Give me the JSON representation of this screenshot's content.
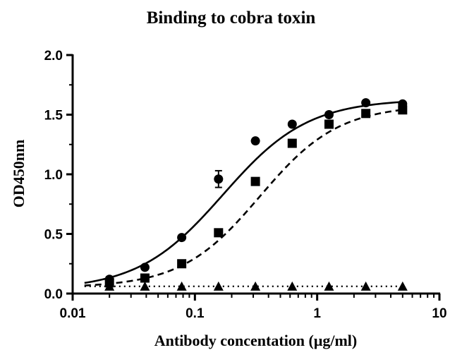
{
  "chart_data": {
    "type": "scatter",
    "title": "Binding to cobra toxin",
    "xlabel": "Antibody concentation (μg/ml)",
    "ylabel": "OD450nm",
    "x_scale": "log",
    "xlim": [
      0.01,
      10
    ],
    "ylim": [
      0,
      2.0
    ],
    "x_ticks": [
      0.01,
      0.1,
      1,
      10
    ],
    "x_tick_labels": [
      "0.01",
      "0.1",
      "1",
      "10"
    ],
    "y_ticks": [
      0,
      0.5,
      1.0,
      1.5,
      2.0
    ],
    "y_tick_labels": [
      "0.0",
      "0.5",
      "1.0",
      "1.5",
      "2.0"
    ],
    "grid": false,
    "legend": "none",
    "series": [
      {
        "marker": "circle",
        "line_style": "solid",
        "x": [
          0.02,
          0.039,
          0.078,
          0.156,
          0.3125,
          0.625,
          1.25,
          2.5,
          5
        ],
        "y": [
          0.12,
          0.22,
          0.47,
          0.96,
          1.28,
          1.42,
          1.5,
          1.6,
          1.59
        ],
        "error": [
          0.02,
          0.01,
          0.02,
          0.07,
          0.02,
          0.02,
          0.02,
          0.01,
          0.02
        ],
        "fit": {
          "bottom": 0.03,
          "top": 1.63,
          "ec50": 0.17,
          "hill": 1.25
        }
      },
      {
        "marker": "square",
        "line_style": "dashed",
        "x": [
          0.02,
          0.039,
          0.078,
          0.156,
          0.3125,
          0.625,
          1.25,
          2.5,
          5
        ],
        "y": [
          0.09,
          0.13,
          0.25,
          0.51,
          0.94,
          1.26,
          1.42,
          1.51,
          1.54
        ],
        "error": [
          0.01,
          0.01,
          0.02,
          0.02,
          0.03,
          0.02,
          0.03,
          0.02,
          0.03
        ],
        "fit": {
          "bottom": 0.05,
          "top": 1.58,
          "ec50": 0.34,
          "hill": 1.35
        }
      },
      {
        "marker": "triangle",
        "line_style": "dotted",
        "x": [
          0.02,
          0.039,
          0.078,
          0.156,
          0.3125,
          0.625,
          1.25,
          2.5,
          5
        ],
        "y": [
          0.06,
          0.06,
          0.06,
          0.06,
          0.06,
          0.06,
          0.06,
          0.06,
          0.06
        ],
        "error": [
          0,
          0,
          0,
          0,
          0,
          0,
          0,
          0,
          0
        ],
        "fit": {
          "bottom": 0.06,
          "top": 0.06,
          "ec50": 0.3,
          "hill": 1
        }
      }
    ]
  }
}
